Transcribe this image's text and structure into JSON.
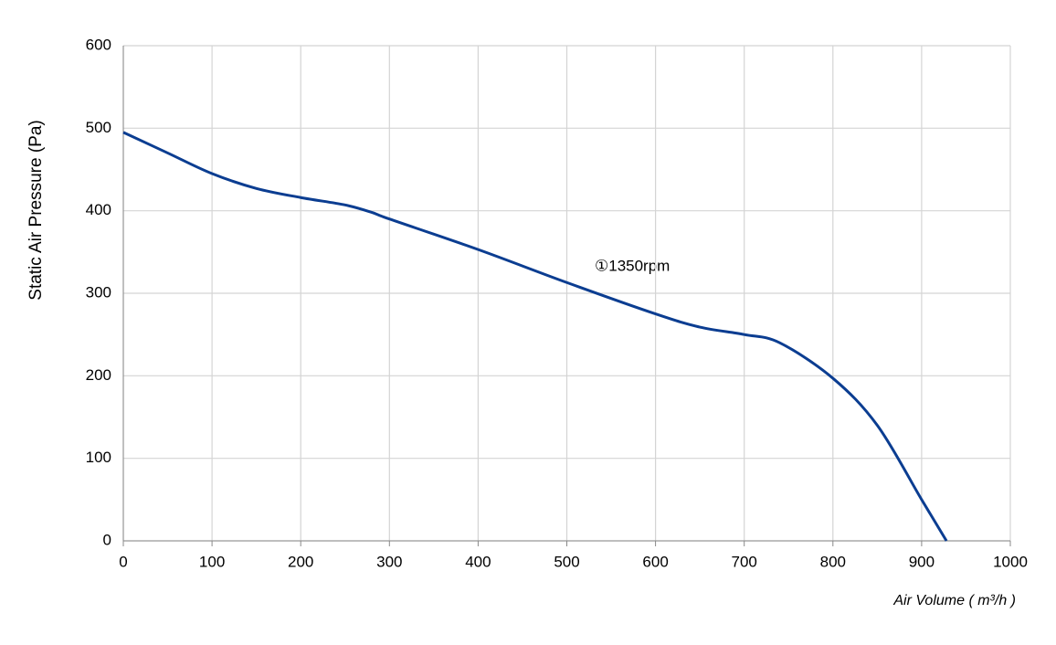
{
  "chart_data": {
    "type": "line",
    "x_label": "Air Volume ( m³/h )",
    "y_label": "Static Air Pressure  (Pa)",
    "x": [
      0,
      50,
      100,
      150,
      200,
      250,
      280,
      300,
      400,
      500,
      600,
      650,
      700,
      740,
      800,
      850,
      900,
      928
    ],
    "series": [
      {
        "name": "①1350rpm",
        "color": "#0b3d91",
        "values": [
          495,
          470,
          445,
          427,
          416,
          407,
          398,
          390,
          353,
          313,
          275,
          259,
          250,
          240,
          197,
          140,
          50,
          0
        ]
      }
    ],
    "xlim": [
      0,
      1000
    ],
    "xticks": [
      0,
      100,
      200,
      300,
      400,
      500,
      600,
      700,
      800,
      900,
      1000
    ],
    "ylim": [
      0,
      600
    ],
    "yticks": [
      0,
      100,
      200,
      300,
      400,
      500,
      600
    ],
    "grid": true
  }
}
